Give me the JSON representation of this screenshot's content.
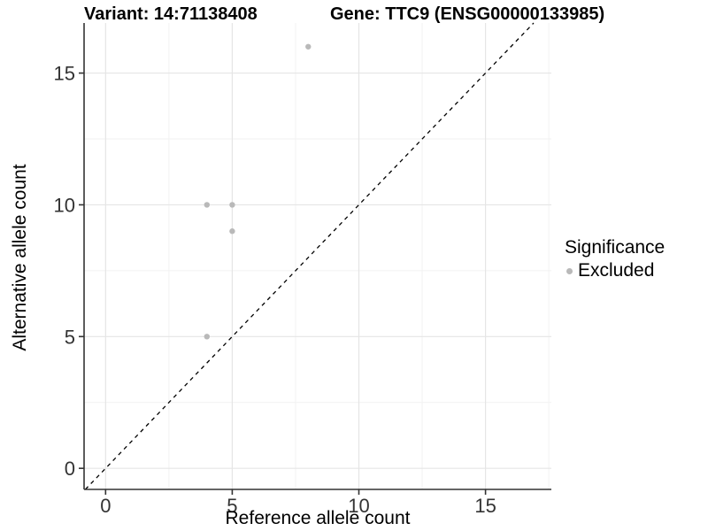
{
  "header": {
    "variant_label": "Variant: 14:71138408",
    "gene_label": "Gene: TTC9 (ENSG00000133985)"
  },
  "chart_data": {
    "type": "scatter",
    "title": "Variant: 14:71138408    Gene: TTC9 (ENSG00000133985)",
    "xlabel": "Reference allele count",
    "ylabel": "Alternative allele count",
    "xlim": [
      -0.85,
      17.6
    ],
    "ylim": [
      -0.8,
      16.9
    ],
    "x_ticks": [
      0,
      5,
      10,
      15
    ],
    "y_ticks": [
      0,
      5,
      10,
      15
    ],
    "x_minor_ticks": [
      2.5,
      7.5,
      12.5,
      17.5
    ],
    "y_minor_ticks": [
      2.5,
      7.5,
      12.5
    ],
    "grid": true,
    "series": [
      {
        "name": "Excluded",
        "color": "#b9b9b9",
        "points": [
          [
            4,
            5
          ],
          [
            4,
            10
          ],
          [
            5,
            9
          ],
          [
            5,
            10
          ],
          [
            8,
            16
          ]
        ]
      }
    ],
    "reference_line": {
      "slope": 1,
      "intercept": 0,
      "style": "dashed",
      "color": "#000000"
    },
    "legend": {
      "title": "Significance",
      "position": "right",
      "items": [
        {
          "label": "Excluded",
          "color": "#b9b9b9"
        }
      ]
    }
  },
  "colors": {
    "background": "#ffffff",
    "point": "#b9b9b9",
    "grid_major": "#e5e5e5",
    "grid_minor": "#f2f2f2",
    "axis": "#333333",
    "tick_text": "#333333",
    "reference_line": "#000000"
  }
}
